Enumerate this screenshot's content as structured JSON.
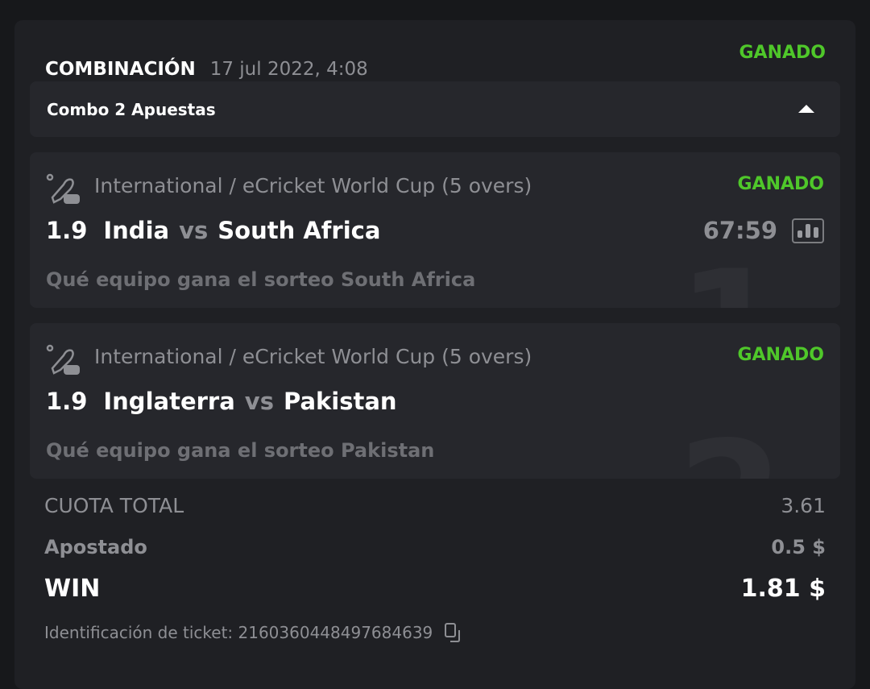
{
  "header": {
    "title": "COMBINACIÓN",
    "date": "17 jul 2022, 4:08",
    "status": "GANADO"
  },
  "combo": {
    "label": "Combo 2 Apuestas",
    "toggle_icon": "triangle-up-icon"
  },
  "legs": [
    {
      "index": "1",
      "sport_icon": "ecricket-icon",
      "league": "International / eCricket World Cup (5 overs)",
      "status": "GANADO",
      "odds": "1.9",
      "home": "India",
      "vs": "vs",
      "away": "South Africa",
      "time": "67:59",
      "selection": "Qué equipo gana el sorteo South Africa"
    },
    {
      "index": "2",
      "sport_icon": "ecricket-icon",
      "league": "International / eCricket World Cup (5 overs)",
      "status": "GANADO",
      "odds": "1.9",
      "home": "Inglaterra",
      "vs": "vs",
      "away": "Pakistan",
      "selection": "Qué equipo gana el sorteo Pakistan"
    }
  ],
  "summary": {
    "total_odds_label": "CUOTA TOTAL",
    "total_odds": "3.61",
    "stake_label": "Apostado",
    "stake": "0.5 $",
    "win_label": "WIN",
    "win": "1.81 $"
  },
  "ticket": {
    "label": "Identificación de ticket: 2160360448497684639"
  },
  "colors": {
    "win": "#4fc72a",
    "background": "#17181b",
    "card": "#1f2024"
  }
}
